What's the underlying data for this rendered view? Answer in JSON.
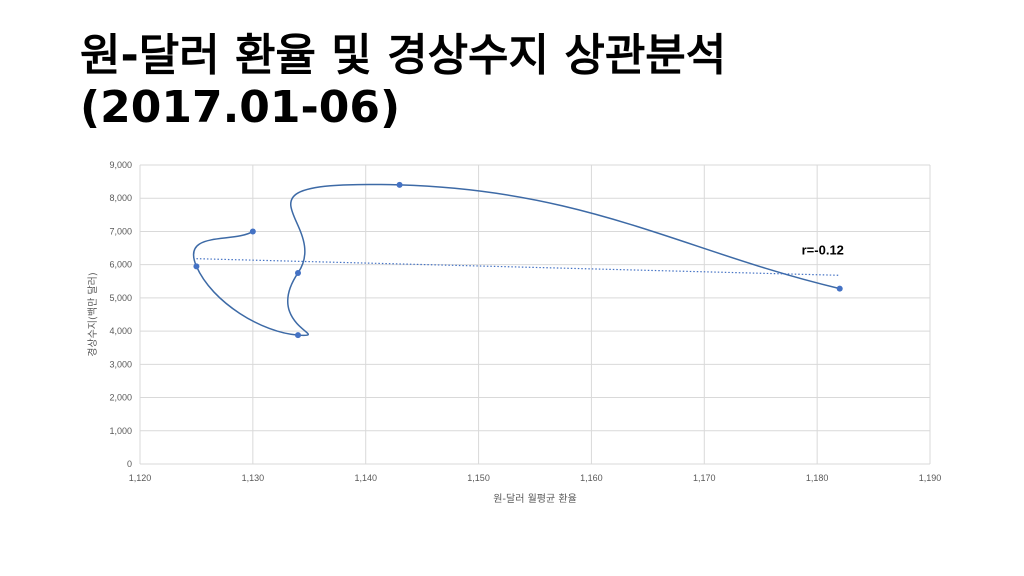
{
  "slide": {
    "title_line1": "원-달러 환율 및 경상수지 상관분석",
    "title_line2": "(2017.01-06)"
  },
  "colors": {
    "series": "#4472C4",
    "line": "#3d6aa6",
    "grid": "#d9d9d9",
    "text": "#595959"
  },
  "chart_data": {
    "type": "scatter",
    "title": "",
    "xlabel": "원-달러 월평균 환율",
    "ylabel": "경상수지(백만 달러)",
    "xlim": [
      1120,
      1190
    ],
    "ylim": [
      0,
      9000
    ],
    "x_ticks": [
      1120,
      1130,
      1140,
      1150,
      1160,
      1170,
      1180,
      1190
    ],
    "y_ticks": [
      0,
      1000,
      2000,
      3000,
      4000,
      5000,
      6000,
      7000,
      8000,
      9000
    ],
    "x_tick_labels": [
      "1,120",
      "1,130",
      "1,140",
      "1,150",
      "1,160",
      "1,170",
      "1,180",
      "1,190"
    ],
    "y_tick_labels": [
      "0",
      "1,000",
      "2,000",
      "3,000",
      "4,000",
      "5,000",
      "6,000",
      "7,000",
      "8,000",
      "9,000"
    ],
    "grid": true,
    "smooth_line": true,
    "points": [
      {
        "x": 1182,
        "y": 5280
      },
      {
        "x": 1143,
        "y": 8400
      },
      {
        "x": 1134,
        "y": 5750
      },
      {
        "x": 1134,
        "y": 3880
      },
      {
        "x": 1125,
        "y": 5950
      },
      {
        "x": 1130,
        "y": 7000
      }
    ],
    "trendline": {
      "x": [
        1125,
        1182
      ],
      "y": [
        6180,
        5680
      ]
    },
    "annotation": {
      "text": "r=-0.12",
      "x": 1180.5,
      "y": 6300
    }
  }
}
